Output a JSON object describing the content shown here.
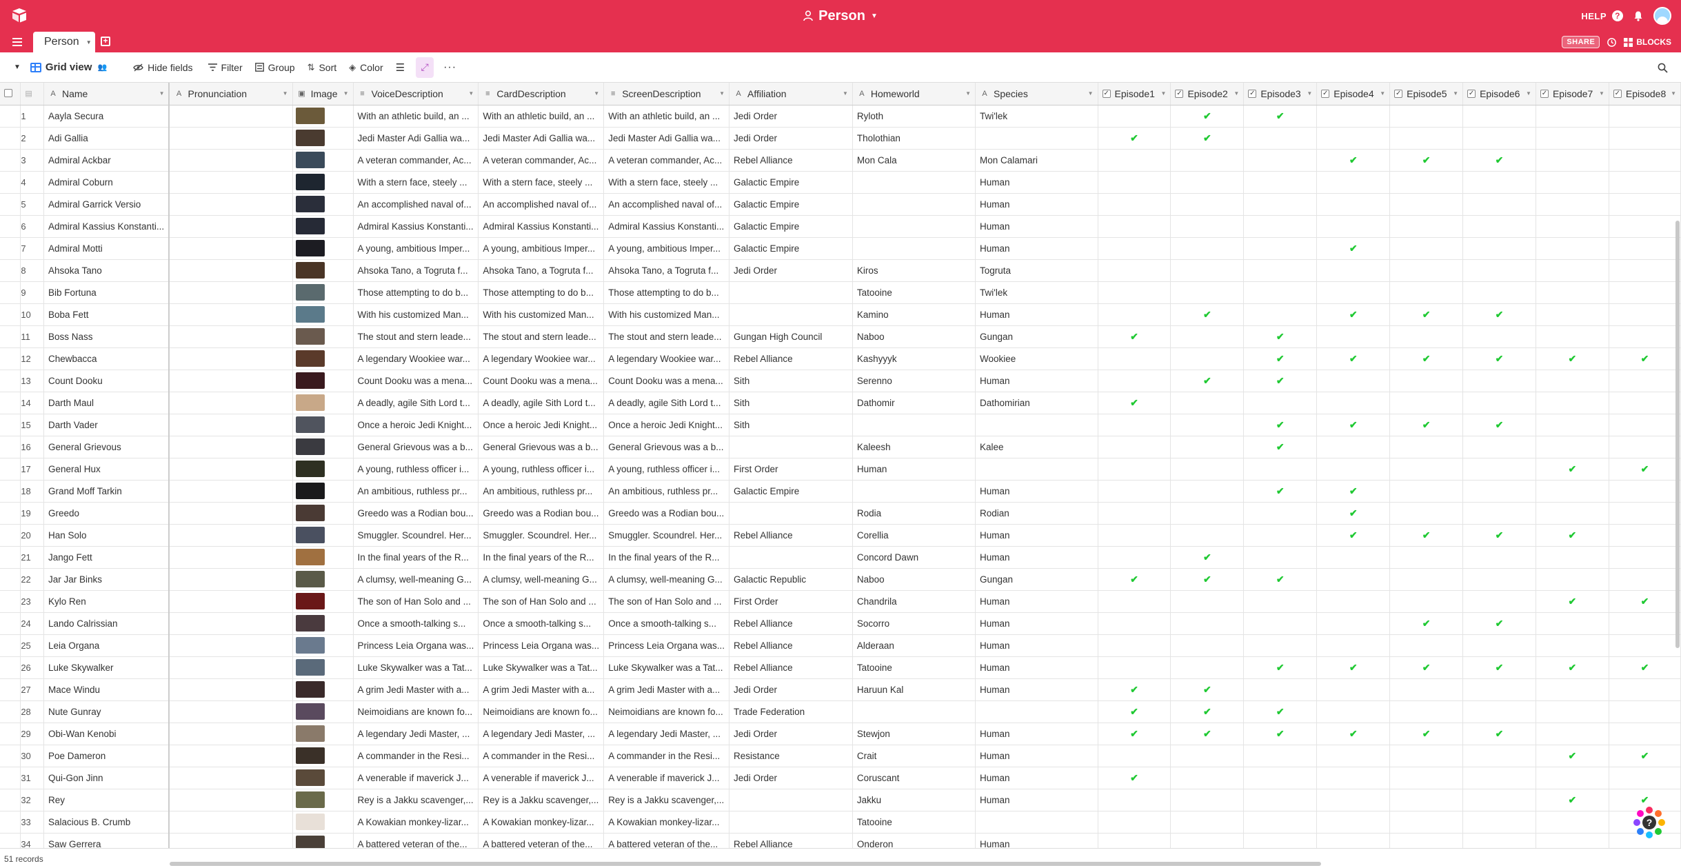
{
  "header": {
    "base_title": "Person",
    "help_label": "HELP",
    "help_glyph": "?"
  },
  "tabs": {
    "active_table": "Person",
    "share_label": "SHARE",
    "blocks_label": "BLOCKS"
  },
  "toolbar": {
    "view_name": "Grid view",
    "hide_fields": "Hide fields",
    "filter": "Filter",
    "group": "Group",
    "sort": "Sort",
    "color": "Color"
  },
  "columns": [
    {
      "label": "Name",
      "icon": "text"
    },
    {
      "label": "Pronunciation",
      "icon": "text"
    },
    {
      "label": "Image",
      "icon": "attachment"
    },
    {
      "label": "VoiceDescription",
      "icon": "long-text"
    },
    {
      "label": "CardDescription",
      "icon": "long-text"
    },
    {
      "label": "ScreenDescription",
      "icon": "long-text"
    },
    {
      "label": "Affiliation",
      "icon": "text"
    },
    {
      "label": "Homeworld",
      "icon": "text"
    },
    {
      "label": "Species",
      "icon": "text"
    },
    {
      "label": "Episode1",
      "icon": "checkbox"
    },
    {
      "label": "Episode2",
      "icon": "checkbox"
    },
    {
      "label": "Episode3",
      "icon": "checkbox"
    },
    {
      "label": "Episode4",
      "icon": "checkbox"
    },
    {
      "label": "Episode5",
      "icon": "checkbox"
    },
    {
      "label": "Episode6",
      "icon": "checkbox"
    },
    {
      "label": "Episode7",
      "icon": "checkbox"
    },
    {
      "label": "Episode8",
      "icon": "checkbox"
    }
  ],
  "rows": [
    {
      "n": "1",
      "name": "Aayla Secura",
      "voice": "With an athletic build, an ...",
      "card": "With an athletic build, an ...",
      "screen": "With an athletic build, an ...",
      "affiliation": "Jedi Order",
      "homeworld": "Ryloth",
      "species": "Twi'lek",
      "ep": [
        0,
        1,
        1,
        0,
        0,
        0,
        0,
        0
      ],
      "thumb": "#6b5a3a"
    },
    {
      "n": "2",
      "name": "Adi Gallia",
      "voice": "Jedi Master Adi Gallia wa...",
      "card": "Jedi Master Adi Gallia wa...",
      "screen": "Jedi Master Adi Gallia wa...",
      "affiliation": "Jedi Order",
      "homeworld": "Tholothian",
      "species": "",
      "ep": [
        1,
        1,
        0,
        0,
        0,
        0,
        0,
        0
      ],
      "thumb": "#4a3b30"
    },
    {
      "n": "3",
      "name": "Admiral Ackbar",
      "voice": "A veteran commander, Ac...",
      "card": "A veteran commander, Ac...",
      "screen": "A veteran commander, Ac...",
      "affiliation": "Rebel Alliance",
      "homeworld": "Mon Cala",
      "species": "Mon Calamari",
      "ep": [
        0,
        0,
        0,
        1,
        1,
        1,
        0,
        0
      ],
      "thumb": "#3a4a5a"
    },
    {
      "n": "4",
      "name": "Admiral Coburn",
      "voice": "With a stern face, steely ...",
      "card": "With a stern face, steely ...",
      "screen": "With a stern face, steely ...",
      "affiliation": "Galactic Empire",
      "homeworld": "",
      "species": "Human",
      "ep": [
        0,
        0,
        0,
        0,
        0,
        0,
        0,
        0
      ],
      "thumb": "#1e2630"
    },
    {
      "n": "5",
      "name": "Admiral Garrick Versio",
      "voice": "An accomplished naval of...",
      "card": "An accomplished naval of...",
      "screen": "An accomplished naval of...",
      "affiliation": "Galactic Empire",
      "homeworld": "",
      "species": "Human",
      "ep": [
        0,
        0,
        0,
        0,
        0,
        0,
        0,
        0
      ],
      "thumb": "#2a2e3a"
    },
    {
      "n": "6",
      "name": "Admiral Kassius Konstanti...",
      "voice": "Admiral Kassius Konstanti...",
      "card": "Admiral Kassius Konstanti...",
      "screen": "Admiral Kassius Konstanti...",
      "affiliation": "Galactic Empire",
      "homeworld": "",
      "species": "Human",
      "ep": [
        0,
        0,
        0,
        0,
        0,
        0,
        0,
        0
      ],
      "thumb": "#262a36"
    },
    {
      "n": "7",
      "name": "Admiral Motti",
      "voice": "A young, ambitious Imper...",
      "card": "A young, ambitious Imper...",
      "screen": "A young, ambitious Imper...",
      "affiliation": "Galactic Empire",
      "homeworld": "",
      "species": "Human",
      "ep": [
        0,
        0,
        0,
        1,
        0,
        0,
        0,
        0
      ],
      "thumb": "#1c1c22"
    },
    {
      "n": "8",
      "name": "Ahsoka Tano",
      "voice": "Ahsoka Tano, a Togruta f...",
      "card": "Ahsoka Tano, a Togruta f...",
      "screen": "Ahsoka Tano, a Togruta f...",
      "affiliation": "Jedi Order",
      "homeworld": "Kiros",
      "species": "Togruta",
      "ep": [
        0,
        0,
        0,
        0,
        0,
        0,
        0,
        0
      ],
      "thumb": "#4a3526"
    },
    {
      "n": "9",
      "name": "Bib Fortuna",
      "voice": "Those attempting to do b...",
      "card": "Those attempting to do b...",
      "screen": "Those attempting to do b...",
      "affiliation": "",
      "homeworld": "Tatooine",
      "species": "Twi'lek",
      "ep": [
        0,
        0,
        0,
        0,
        0,
        0,
        0,
        0
      ],
      "thumb": "#5a6a6e"
    },
    {
      "n": "10",
      "name": "Boba Fett",
      "voice": "With his customized Man...",
      "card": "With his customized Man...",
      "screen": "With his customized Man...",
      "affiliation": "",
      "homeworld": "Kamino",
      "species": "Human",
      "ep": [
        0,
        1,
        0,
        1,
        1,
        1,
        0,
        0
      ],
      "thumb": "#5b7a8a"
    },
    {
      "n": "11",
      "name": "Boss Nass",
      "voice": "The stout and stern leade...",
      "card": "The stout and stern leade...",
      "screen": "The stout and stern leade...",
      "affiliation": "Gungan High Council",
      "homeworld": "Naboo",
      "species": "Gungan",
      "ep": [
        1,
        0,
        1,
        0,
        0,
        0,
        0,
        0
      ],
      "thumb": "#6a5a4e"
    },
    {
      "n": "12",
      "name": "Chewbacca",
      "voice": "A legendary Wookiee war...",
      "card": "A legendary Wookiee war...",
      "screen": "A legendary Wookiee war...",
      "affiliation": "Rebel Alliance",
      "homeworld": "Kashyyyk",
      "species": "Wookiee",
      "ep": [
        0,
        0,
        1,
        1,
        1,
        1,
        1,
        1
      ],
      "thumb": "#5a3a2a"
    },
    {
      "n": "13",
      "name": "Count Dooku",
      "voice": "Count Dooku was a mena...",
      "card": "Count Dooku was a mena...",
      "screen": "Count Dooku was a mena...",
      "affiliation": "Sith",
      "homeworld": "Serenno",
      "species": "Human",
      "ep": [
        0,
        1,
        1,
        0,
        0,
        0,
        0,
        0
      ],
      "thumb": "#3a1a1e"
    },
    {
      "n": "14",
      "name": "Darth Maul",
      "voice": "A deadly, agile Sith Lord t...",
      "card": "A deadly, agile Sith Lord t...",
      "screen": "A deadly, agile Sith Lord t...",
      "affiliation": "Sith",
      "homeworld": "Dathomir",
      "species": "Dathomirian",
      "ep": [
        1,
        0,
        0,
        0,
        0,
        0,
        0,
        0
      ],
      "thumb": "#c8a888"
    },
    {
      "n": "15",
      "name": "Darth Vader",
      "voice": "Once a heroic Jedi Knight...",
      "card": "Once a heroic Jedi Knight...",
      "screen": "Once a heroic Jedi Knight...",
      "affiliation": "Sith",
      "homeworld": "",
      "species": "",
      "ep": [
        0,
        0,
        1,
        1,
        1,
        1,
        0,
        0
      ],
      "thumb": "#50545e"
    },
    {
      "n": "16",
      "name": "General Grievous",
      "voice": "General Grievous was a b...",
      "card": "General Grievous was a b...",
      "screen": "General Grievous was a b...",
      "affiliation": "",
      "homeworld": "Kaleesh",
      "species": "Kalee",
      "ep": [
        0,
        0,
        1,
        0,
        0,
        0,
        0,
        0
      ],
      "thumb": "#3a3a40"
    },
    {
      "n": "17",
      "name": "General Hux",
      "voice": "A young, ruthless officer i...",
      "card": "A young, ruthless officer i...",
      "screen": "A young, ruthless officer i...",
      "affiliation": "First Order",
      "homeworld": "Human",
      "species": "",
      "ep": [
        0,
        0,
        0,
        0,
        0,
        0,
        1,
        1
      ],
      "thumb": "#2e3022"
    },
    {
      "n": "18",
      "name": "Grand Moff Tarkin",
      "voice": "An ambitious, ruthless pr...",
      "card": "An ambitious, ruthless pr...",
      "screen": "An ambitious, ruthless pr...",
      "affiliation": "Galactic Empire",
      "homeworld": "",
      "species": "Human",
      "ep": [
        0,
        0,
        1,
        1,
        0,
        0,
        0,
        0
      ],
      "thumb": "#1a1a1c"
    },
    {
      "n": "19",
      "name": "Greedo",
      "voice": "Greedo was a Rodian bou...",
      "card": "Greedo was a Rodian bou...",
      "screen": "Greedo was a Rodian bou...",
      "affiliation": "",
      "homeworld": "Rodia",
      "species": "Rodian",
      "ep": [
        0,
        0,
        0,
        1,
        0,
        0,
        0,
        0
      ],
      "thumb": "#4a3a34"
    },
    {
      "n": "20",
      "name": "Han Solo",
      "voice": "Smuggler. Scoundrel. Her...",
      "card": "Smuggler. Scoundrel. Her...",
      "screen": "Smuggler. Scoundrel. Her...",
      "affiliation": "Rebel Alliance",
      "homeworld": "Corellia",
      "species": "Human",
      "ep": [
        0,
        0,
        0,
        1,
        1,
        1,
        1,
        0
      ],
      "thumb": "#4a5060"
    },
    {
      "n": "21",
      "name": "Jango Fett",
      "voice": "In the final years of the R...",
      "card": "In the final years of the R...",
      "screen": "In the final years of the R...",
      "affiliation": "",
      "homeworld": "Concord Dawn",
      "species": "Human",
      "ep": [
        0,
        1,
        0,
        0,
        0,
        0,
        0,
        0
      ],
      "thumb": "#a07040"
    },
    {
      "n": "22",
      "name": "Jar Jar Binks",
      "voice": "A clumsy, well-meaning G...",
      "card": "A clumsy, well-meaning G...",
      "screen": "A clumsy, well-meaning G...",
      "affiliation": "Galactic Republic",
      "homeworld": "Naboo",
      "species": "Gungan",
      "ep": [
        1,
        1,
        1,
        0,
        0,
        0,
        0,
        0
      ],
      "thumb": "#5a5a48"
    },
    {
      "n": "23",
      "name": "Kylo Ren",
      "voice": "The son of Han Solo and ...",
      "card": "The son of Han Solo and ...",
      "screen": "The son of Han Solo and ...",
      "affiliation": "First Order",
      "homeworld": "Chandrila",
      "species": "Human",
      "ep": [
        0,
        0,
        0,
        0,
        0,
        0,
        1,
        1
      ],
      "thumb": "#6a1818"
    },
    {
      "n": "24",
      "name": "Lando Calrissian",
      "voice": "Once a smooth-talking s...",
      "card": "Once a smooth-talking s...",
      "screen": "Once a smooth-talking s...",
      "affiliation": "Rebel Alliance",
      "homeworld": "Socorro",
      "species": "Human",
      "ep": [
        0,
        0,
        0,
        0,
        1,
        1,
        0,
        0
      ],
      "thumb": "#4a3a3e"
    },
    {
      "n": "25",
      "name": "Leia Organa",
      "voice": "Princess Leia Organa was...",
      "card": "Princess Leia Organa was...",
      "screen": "Princess Leia Organa was...",
      "affiliation": "Rebel Alliance",
      "homeworld": "Alderaan",
      "species": "Human",
      "ep": [
        0,
        0,
        0,
        0,
        0,
        0,
        0,
        0
      ],
      "thumb": "#6a7a8e"
    },
    {
      "n": "26",
      "name": "Luke Skywalker",
      "voice": "Luke Skywalker was a Tat...",
      "card": "Luke Skywalker was a Tat...",
      "screen": "Luke Skywalker was a Tat...",
      "affiliation": "Rebel Alliance",
      "homeworld": "Tatooine",
      "species": "Human",
      "ep": [
        0,
        0,
        1,
        1,
        1,
        1,
        1,
        1
      ],
      "thumb": "#5a6a7a"
    },
    {
      "n": "27",
      "name": "Mace Windu",
      "voice": "A grim Jedi Master with a...",
      "card": "A grim Jedi Master with a...",
      "screen": "A grim Jedi Master with a...",
      "affiliation": "Jedi Order",
      "homeworld": "Haruun Kal",
      "species": "Human",
      "ep": [
        1,
        1,
        0,
        0,
        0,
        0,
        0,
        0
      ],
      "thumb": "#3a2a2a"
    },
    {
      "n": "28",
      "name": "Nute Gunray",
      "voice": "Neimoidians are known fo...",
      "card": "Neimoidians are known fo...",
      "screen": "Neimoidians are known fo...",
      "affiliation": "Trade Federation",
      "homeworld": "",
      "species": "",
      "ep": [
        1,
        1,
        1,
        0,
        0,
        0,
        0,
        0
      ],
      "thumb": "#5a4a5e"
    },
    {
      "n": "29",
      "name": "Obi-Wan Kenobi",
      "voice": "A legendary Jedi Master, ...",
      "card": "A legendary Jedi Master, ...",
      "screen": "A legendary Jedi Master, ...",
      "affiliation": "Jedi Order",
      "homeworld": "Stewjon",
      "species": "Human",
      "ep": [
        1,
        1,
        1,
        1,
        1,
        1,
        0,
        0
      ],
      "thumb": "#8a7a6a"
    },
    {
      "n": "30",
      "name": "Poe Dameron",
      "voice": "A commander in the Resi...",
      "card": "A commander in the Resi...",
      "screen": "A commander in the Resi...",
      "affiliation": "Resistance",
      "homeworld": "Crait",
      "species": "Human",
      "ep": [
        0,
        0,
        0,
        0,
        0,
        0,
        1,
        1
      ],
      "thumb": "#3a3028"
    },
    {
      "n": "31",
      "name": "Qui-Gon Jinn",
      "voice": "A venerable if maverick J...",
      "card": "A venerable if maverick J...",
      "screen": "A venerable if maverick J...",
      "affiliation": "Jedi Order",
      "homeworld": "Coruscant",
      "species": "Human",
      "ep": [
        1,
        0,
        0,
        0,
        0,
        0,
        0,
        0
      ],
      "thumb": "#5a4a3a"
    },
    {
      "n": "32",
      "name": "Rey",
      "voice": "Rey is a Jakku scavenger,...",
      "card": "Rey is a Jakku scavenger,...",
      "screen": "Rey is a Jakku scavenger,...",
      "affiliation": "",
      "homeworld": "Jakku",
      "species": "Human",
      "ep": [
        0,
        0,
        0,
        0,
        0,
        0,
        1,
        1
      ],
      "thumb": "#6a6a4a"
    },
    {
      "n": "33",
      "name": "Salacious B. Crumb",
      "voice": "A Kowakian monkey-lizar...",
      "card": "A Kowakian monkey-lizar...",
      "screen": "A Kowakian monkey-lizar...",
      "affiliation": "",
      "homeworld": "Tatooine",
      "species": "",
      "ep": [
        0,
        0,
        0,
        0,
        0,
        0,
        0,
        0
      ],
      "thumb": "#e8e0d8"
    },
    {
      "n": "34",
      "name": "Saw Gerrera",
      "voice": "A battered veteran of the...",
      "card": "A battered veteran of the...",
      "screen": "A battered veteran of the...",
      "affiliation": "Rebel Alliance",
      "homeworld": "Onderon",
      "species": "Human",
      "ep": [
        0,
        0,
        0,
        0,
        0,
        0,
        0,
        0
      ],
      "thumb": "#4a4038"
    }
  ],
  "footer": {
    "record_count": "51 records"
  },
  "colors": {
    "brand": "#e5304f",
    "check": "#20c933",
    "view_accent": "#2d7ff9"
  }
}
